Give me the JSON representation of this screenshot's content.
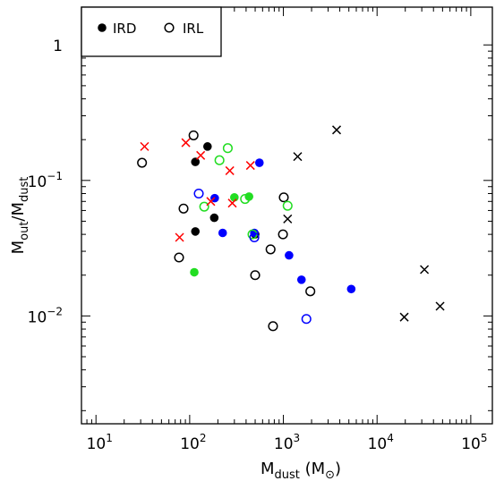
{
  "chart_data": {
    "type": "scatter",
    "x_scale": "log",
    "y_scale": "log",
    "xlim": [
      7,
      170000
    ],
    "ylim": [
      0.0016,
      1.9
    ],
    "grid": false,
    "legend_placement": "top-left",
    "xlabel": {
      "base": "M",
      "sub": "dust",
      "unit_open": " (M",
      "unit_close": ")"
    },
    "ylabel": {
      "base1": "M",
      "sub1": "out",
      "slash": "/M",
      "sub2": "dust"
    },
    "x_ticks": [
      {
        "value": 10,
        "base": "10",
        "exp": "1"
      },
      {
        "value": 100,
        "base": "10",
        "exp": "2"
      },
      {
        "value": 1000,
        "base": "10",
        "exp": "3"
      },
      {
        "value": 10000,
        "base": "10",
        "exp": "4"
      },
      {
        "value": 100000,
        "base": "10",
        "exp": "5"
      }
    ],
    "y_ticks": [
      {
        "value": 1,
        "base": "1",
        "exp": ""
      },
      {
        "value": 0.1,
        "base": "10",
        "exp": "−1"
      },
      {
        "value": 0.01,
        "base": "10",
        "exp": "−2"
      }
    ],
    "legend": [
      {
        "label": "IRD",
        "marker": "filled-circle"
      },
      {
        "label": "IRL",
        "marker": "open-circle"
      }
    ],
    "colors": {
      "black": "#000000",
      "red": "#ff0000",
      "green": "#22dd22",
      "blue": "#0000ff"
    },
    "series": [
      {
        "marker": "filled-circle",
        "color": "black",
        "points": [
          {
            "x": 115,
            "y": 0.137
          },
          {
            "x": 155,
            "y": 0.178
          },
          {
            "x": 115,
            "y": 0.042
          },
          {
            "x": 183,
            "y": 0.053
          },
          {
            "x": 500,
            "y": 0.04
          }
        ]
      },
      {
        "marker": "filled-circle",
        "color": "blue",
        "points": [
          {
            "x": 555,
            "y": 0.135
          },
          {
            "x": 185,
            "y": 0.074
          },
          {
            "x": 225,
            "y": 0.041
          },
          {
            "x": 490,
            "y": 0.041
          },
          {
            "x": 1150,
            "y": 0.028
          },
          {
            "x": 1560,
            "y": 0.0185
          },
          {
            "x": 5300,
            "y": 0.0158
          }
        ]
      },
      {
        "marker": "filled-circle",
        "color": "green",
        "points": [
          {
            "x": 300,
            "y": 0.075
          },
          {
            "x": 430,
            "y": 0.076
          },
          {
            "x": 112,
            "y": 0.021
          }
        ]
      },
      {
        "marker": "open-circle",
        "color": "black",
        "points": [
          {
            "x": 110,
            "y": 0.215
          },
          {
            "x": 31,
            "y": 0.135
          },
          {
            "x": 86,
            "y": 0.062
          },
          {
            "x": 77,
            "y": 0.027
          },
          {
            "x": 1010,
            "y": 0.075
          },
          {
            "x": 990,
            "y": 0.04
          },
          {
            "x": 730,
            "y": 0.031
          },
          {
            "x": 500,
            "y": 0.02
          },
          {
            "x": 1940,
            "y": 0.0152
          },
          {
            "x": 775,
            "y": 0.0084
          }
        ]
      },
      {
        "marker": "open-circle",
        "color": "green",
        "points": [
          {
            "x": 255,
            "y": 0.173
          },
          {
            "x": 208,
            "y": 0.141
          },
          {
            "x": 143,
            "y": 0.064
          },
          {
            "x": 390,
            "y": 0.073
          },
          {
            "x": 468,
            "y": 0.04
          },
          {
            "x": 1110,
            "y": 0.065
          }
        ]
      },
      {
        "marker": "open-circle",
        "color": "blue",
        "points": [
          {
            "x": 125,
            "y": 0.08
          },
          {
            "x": 490,
            "y": 0.038
          },
          {
            "x": 1760,
            "y": 0.0095
          }
        ]
      },
      {
        "marker": "cross",
        "color": "red",
        "points": [
          {
            "x": 33,
            "y": 0.178
          },
          {
            "x": 91,
            "y": 0.19
          },
          {
            "x": 131,
            "y": 0.153
          },
          {
            "x": 268,
            "y": 0.118
          },
          {
            "x": 445,
            "y": 0.129
          },
          {
            "x": 168,
            "y": 0.07
          },
          {
            "x": 285,
            "y": 0.068
          },
          {
            "x": 78,
            "y": 0.038
          }
        ]
      },
      {
        "marker": "cross",
        "color": "black",
        "points": [
          {
            "x": 3700,
            "y": 0.236
          },
          {
            "x": 1420,
            "y": 0.15
          },
          {
            "x": 1110,
            "y": 0.052
          },
          {
            "x": 32000,
            "y": 0.022
          },
          {
            "x": 47000,
            "y": 0.0118
          },
          {
            "x": 19500,
            "y": 0.0098
          }
        ]
      }
    ]
  }
}
